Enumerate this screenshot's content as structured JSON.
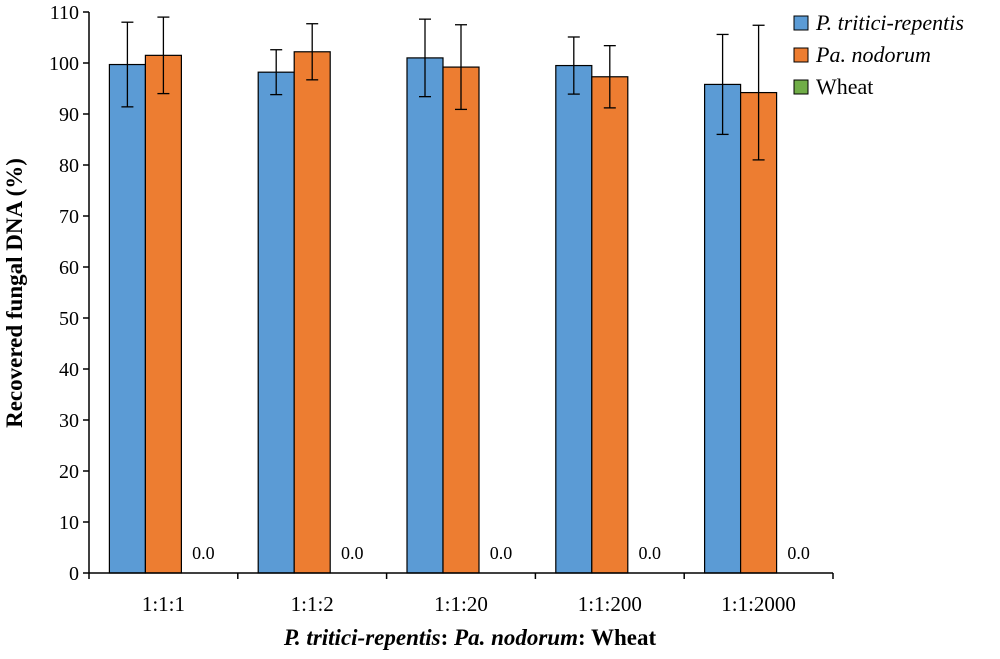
{
  "chart_data": {
    "type": "bar",
    "title": "",
    "categories": [
      "1:1:1",
      "1:1:2",
      "1:1:20",
      "1:1:200",
      "1:1:2000"
    ],
    "series": [
      {
        "name": "P. tritici-repentis",
        "color": "#5B9BD5",
        "values": [
          99.7,
          98.2,
          101.0,
          99.5,
          95.8
        ],
        "errors": [
          8.3,
          4.4,
          7.6,
          5.6,
          9.8
        ]
      },
      {
        "name": "Pa. nodorum",
        "color": "#ED7D31",
        "values": [
          101.5,
          102.2,
          99.2,
          97.3,
          94.2
        ],
        "errors": [
          7.5,
          5.5,
          8.3,
          6.1,
          13.2
        ]
      },
      {
        "name": "Wheat",
        "color": "#70AD47",
        "values": [
          0.0,
          0.0,
          0.0,
          0.0,
          0.0
        ],
        "errors": [
          0,
          0,
          0,
          0,
          0
        ]
      }
    ],
    "data_labels": [
      "0.0",
      "0.0",
      "0.0",
      "0.0",
      "0.0"
    ],
    "ylim": [
      0,
      110
    ],
    "yticks": [
      0,
      10,
      20,
      30,
      40,
      50,
      60,
      70,
      80,
      90,
      100,
      110
    ],
    "ylabel": "Recovered fungal DNA (%)",
    "xlabel": {
      "part1": "P. tritici-repentis",
      "sep1": ": ",
      "part2": "Pa. nodorum",
      "sep2": ": Wheat"
    },
    "legend": {
      "position": "top-right",
      "entries": [
        {
          "label": "P. tritici-repentis",
          "italic": true
        },
        {
          "label": "Pa. nodorum",
          "italic": true
        },
        {
          "label": "Wheat",
          "italic": false
        }
      ]
    },
    "grid": false
  }
}
